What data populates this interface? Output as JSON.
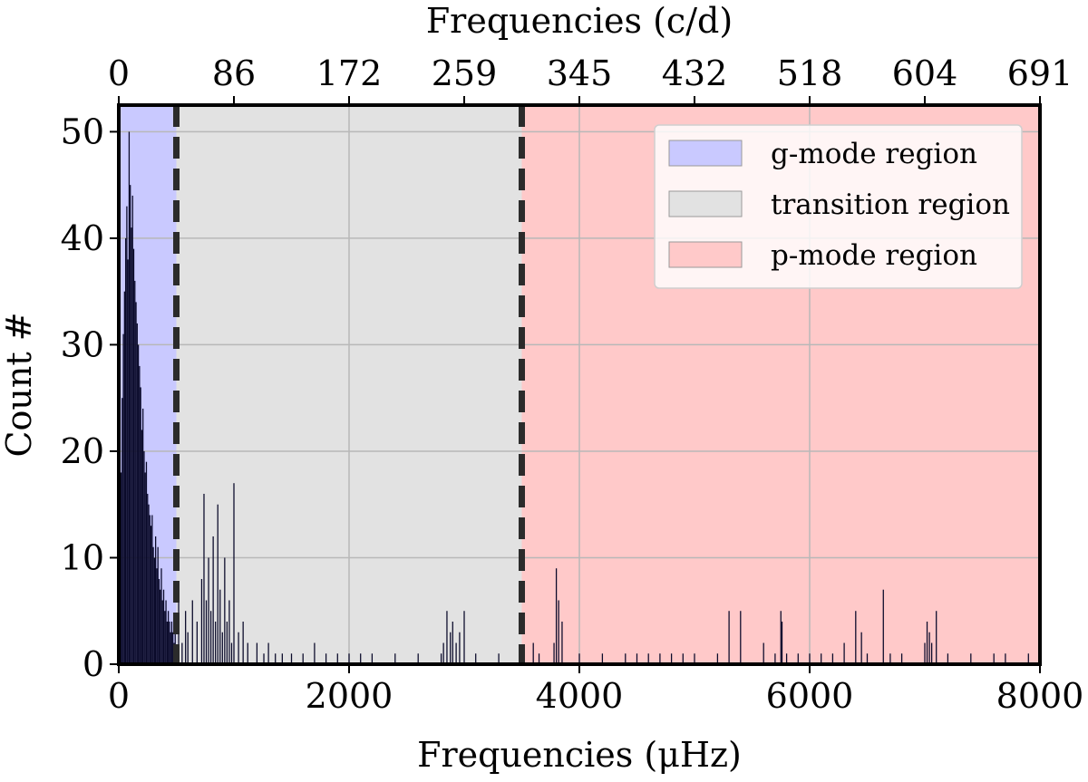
{
  "chart_data": {
    "type": "bar",
    "xlabel_bottom": "Frequencies (μHz)",
    "xlabel_top": "Frequencies (c/d)",
    "ylabel": "Count #",
    "xlim": [
      0,
      8000
    ],
    "ylim": [
      0,
      52.5
    ],
    "x_ticks": [
      0,
      2000,
      4000,
      6000,
      8000
    ],
    "y_ticks": [
      0,
      10,
      20,
      30,
      40,
      50
    ],
    "top_ticks": [
      "0",
      "86",
      "172",
      "259",
      "345",
      "432",
      "518",
      "604",
      "691"
    ],
    "grid": true,
    "legend_position": "top-right",
    "regions": [
      {
        "name": "g-mode region",
        "from": 0,
        "to": 500,
        "color": "#c9c9ff"
      },
      {
        "name": "transition region",
        "from": 500,
        "to": 3500,
        "color": "#e2e2e2"
      },
      {
        "name": "p-mode region",
        "from": 3500,
        "to": 8000,
        "color": "#ffc9c9"
      }
    ],
    "boundaries": [
      500,
      3500
    ],
    "series": [
      {
        "bin_width": 10,
        "color": "#0a0a2a",
        "x": [
          10,
          20,
          30,
          40,
          50,
          60,
          70,
          80,
          90,
          100,
          110,
          120,
          130,
          140,
          150,
          160,
          170,
          180,
          190,
          200,
          210,
          220,
          230,
          240,
          250,
          260,
          270,
          280,
          290,
          300,
          310,
          320,
          330,
          340,
          350,
          360,
          370,
          380,
          390,
          400,
          410,
          420,
          430,
          440,
          450,
          460,
          470,
          480,
          490,
          520,
          550,
          580,
          600,
          640,
          680,
          720,
          740,
          760,
          780,
          800,
          820,
          840,
          860,
          880,
          900,
          920,
          940,
          960,
          980,
          1000,
          1040,
          1080,
          1120,
          1200,
          1260,
          1300,
          1360,
          1420,
          1500,
          1600,
          1700,
          1800,
          1900,
          2000,
          2100,
          2200,
          2400,
          2600,
          2800,
          2820,
          2850,
          2880,
          2900,
          2930,
          2960,
          3000,
          3100,
          3300,
          3600,
          3650,
          3780,
          3800,
          3820,
          3850,
          4000,
          4200,
          4400,
          4500,
          4600,
          4700,
          4800,
          4900,
          5000,
          5200,
          5300,
          5400,
          5600,
          5700,
          5750,
          5760,
          5800,
          5900,
          6000,
          6100,
          6200,
          6300,
          6400,
          6450,
          6500,
          6640,
          6700,
          6800,
          7000,
          7020,
          7040,
          7060,
          7100,
          7200,
          7400,
          7600,
          7700,
          7900
        ],
        "values": [
          12,
          18,
          25,
          31,
          35,
          40,
          43,
          38,
          50,
          45,
          41,
          44,
          39,
          36,
          34,
          32,
          30,
          28,
          26,
          22,
          24,
          20,
          18,
          19,
          16,
          15,
          14,
          13,
          14,
          11,
          10,
          12,
          9,
          11,
          8,
          7,
          9,
          6,
          7,
          5,
          6,
          4,
          5,
          4,
          3,
          4,
          3,
          2,
          3,
          6,
          2,
          5,
          3,
          6,
          4,
          8,
          16,
          6,
          10,
          5,
          12,
          4,
          15,
          7,
          3,
          10,
          4,
          6,
          2,
          17,
          3,
          4,
          2,
          2,
          1,
          2,
          1,
          1,
          1,
          1,
          2,
          1,
          1,
          1,
          1,
          1,
          1,
          1,
          1,
          2,
          5,
          3,
          4,
          2,
          3,
          5,
          1,
          1,
          2,
          1,
          2,
          9,
          6,
          4,
          1,
          1,
          1,
          1,
          1,
          1,
          1,
          1,
          1,
          1,
          5,
          5,
          2,
          1,
          5,
          4,
          1,
          1,
          1,
          1,
          1,
          2,
          5,
          3,
          1,
          7,
          1,
          1,
          2,
          4,
          3,
          2,
          5,
          1,
          1,
          1,
          1,
          1
        ]
      }
    ]
  }
}
